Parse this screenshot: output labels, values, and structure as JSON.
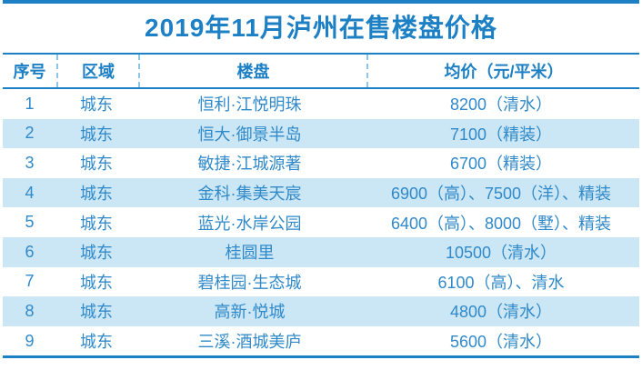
{
  "title": "2019年11月泸州在售楼盘价格",
  "colors": {
    "accent_blue": "#1d80c5",
    "row_text_blue": "#3089c9",
    "alt_row_background": "#cbe6f5",
    "dashed_divider": "#8ec5ea"
  },
  "chart_data": {
    "type": "table",
    "title": "2019年11月泸州在售楼盘价格",
    "columns": [
      "序号",
      "区域",
      "楼盘",
      "均价（元/平米）"
    ],
    "rows": [
      [
        "1",
        "城东",
        "恒利·江悦明珠",
        "8200（清水）"
      ],
      [
        "2",
        "城东",
        "恒大·御景半岛",
        "7100（精装）"
      ],
      [
        "3",
        "城东",
        "敏捷·江城源著",
        "6700（精装）"
      ],
      [
        "4",
        "城东",
        "金科·集美天宸",
        "6900（高）、7500（洋）、精装"
      ],
      [
        "5",
        "城东",
        "蓝光·水岸公园",
        "6400（高）、8000（墅）、精装"
      ],
      [
        "6",
        "城东",
        "桂圆里",
        "10500（清水）"
      ],
      [
        "7",
        "城东",
        "碧桂园·生态城",
        "6100（高）、清水"
      ],
      [
        "8",
        "城东",
        "高新·悦城",
        "4800（清水）"
      ],
      [
        "9",
        "城东",
        "三溪·酒城美庐",
        "5600（清水）"
      ]
    ],
    "layout_hints": {
      "alternating_row_shading": "even rows light blue, odd rows white",
      "header_dividers": "vertical dashed lines in header row only",
      "alignment": "all cells center-aligned"
    }
  }
}
